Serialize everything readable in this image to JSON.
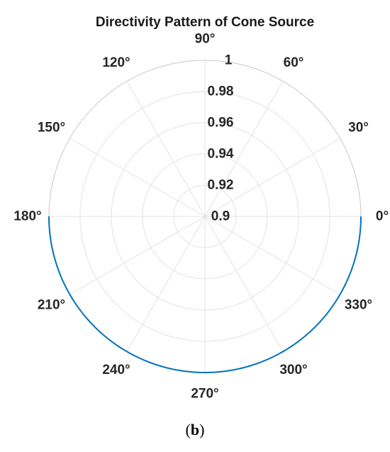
{
  "chart_data": {
    "type": "polar",
    "title": "Directivity Pattern of Cone Source",
    "theta_ticks": [
      0,
      30,
      60,
      90,
      120,
      150,
      180,
      210,
      240,
      270,
      300,
      330
    ],
    "theta_tick_labels": [
      "0°",
      "30°",
      "60°",
      "90°",
      "120°",
      "150°",
      "180°",
      "210°",
      "240°",
      "270°",
      "300°",
      "330°"
    ],
    "r_ticks": [
      0.9,
      0.92,
      0.94,
      0.96,
      0.98,
      1
    ],
    "r_tick_labels": [
      "0.9",
      "0.92",
      "0.94",
      "0.96",
      "0.98",
      "1"
    ],
    "rlim": [
      0.9,
      1
    ],
    "grid": true,
    "series": [
      {
        "theta_start_deg": 180,
        "theta_end_deg": 360,
        "r": 1,
        "color": "#0072BD"
      }
    ]
  },
  "caption": {
    "open": "(",
    "letter": "b",
    "close": ")"
  }
}
